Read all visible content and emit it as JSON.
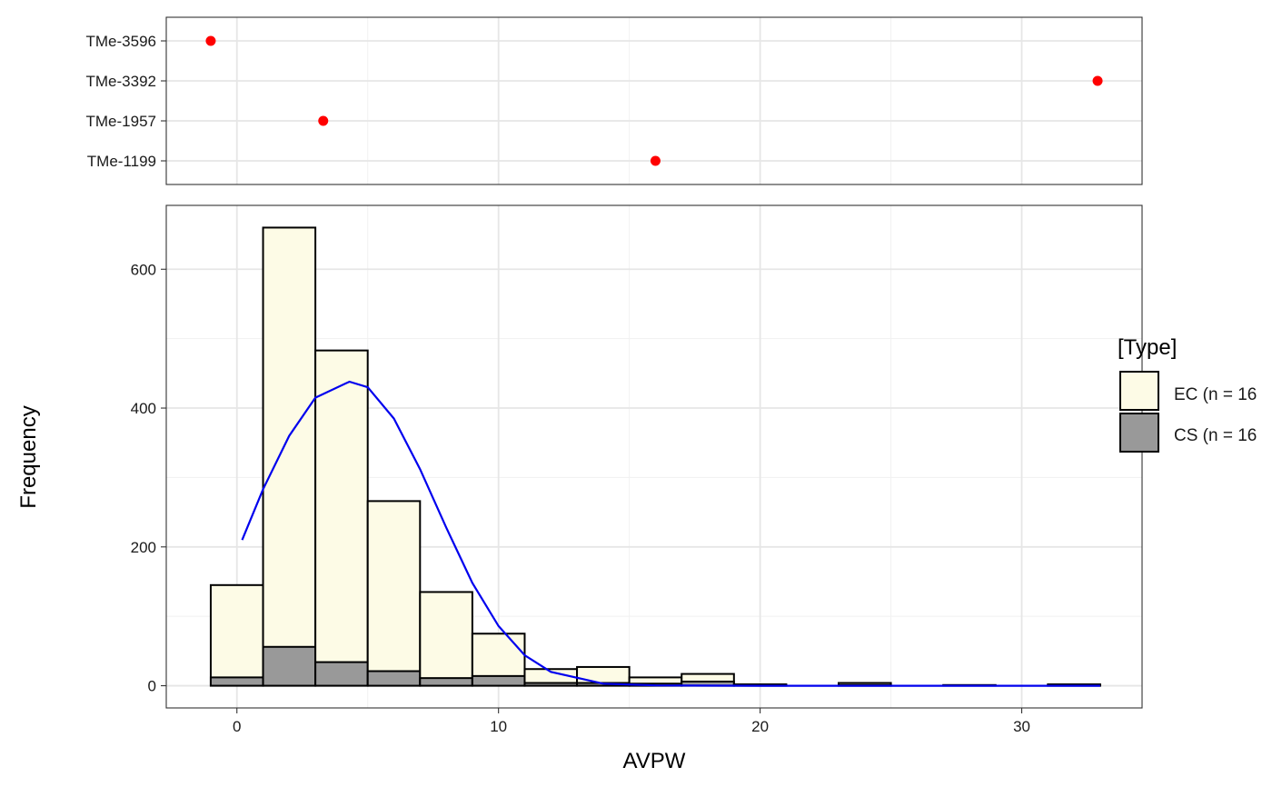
{
  "chart_data": [
    {
      "type": "scatter",
      "panel": "top",
      "categories": [
        "TMe-3596",
        "TMe-3392",
        "TMe-1957",
        "TMe-1199"
      ],
      "points": [
        {
          "label": "TMe-3596",
          "x": -1.0
        },
        {
          "label": "TMe-3392",
          "x": 32.9
        },
        {
          "label": "TMe-1957",
          "x": 3.3
        },
        {
          "label": "TMe-1199",
          "x": 16.0
        }
      ],
      "point_color": "#ff0000",
      "grid": true
    },
    {
      "type": "bar",
      "subtype": "stacked-histogram",
      "panel": "bottom",
      "xlabel": "AVPW",
      "ylabel": "Frequency",
      "xlim": [
        -2.7,
        34.6
      ],
      "ylim": [
        -32,
        692
      ],
      "x_ticks": [
        0,
        10,
        20,
        30
      ],
      "y_ticks": [
        0,
        200,
        400,
        600
      ],
      "bin_edges": [
        -1,
        1,
        3,
        5,
        7,
        9,
        11,
        13,
        15,
        17,
        19,
        21,
        23,
        25,
        27,
        29,
        31,
        33
      ],
      "series": [
        {
          "name": "EC (n = 16",
          "color": "#fdfbe6",
          "values": [
            145,
            660,
            483,
            266,
            135,
            75,
            24,
            27,
            12,
            17,
            2,
            0,
            4,
            0,
            1,
            0,
            2
          ]
        },
        {
          "name": "CS (n = 16",
          "color": "#999999",
          "values": [
            12,
            56,
            34,
            21,
            11,
            14,
            4,
            4,
            3,
            6,
            1,
            0,
            1,
            0,
            0,
            0,
            1
          ]
        }
      ],
      "curve": {
        "color": "#0000ee",
        "x": [
          0.2,
          1.0,
          2.0,
          3.0,
          4.3,
          5.0,
          6.0,
          7.0,
          8.0,
          9.0,
          10.0,
          11.0,
          12.0,
          14.0,
          16.0,
          20.0,
          25.0,
          33.0
        ],
        "y": [
          210,
          283,
          360,
          415,
          438,
          430,
          385,
          312,
          228,
          148,
          86,
          44,
          20,
          3,
          0.5,
          0,
          0,
          0
        ]
      },
      "legend": {
        "title": "[Type]",
        "position": "right"
      },
      "grid": true
    }
  ]
}
